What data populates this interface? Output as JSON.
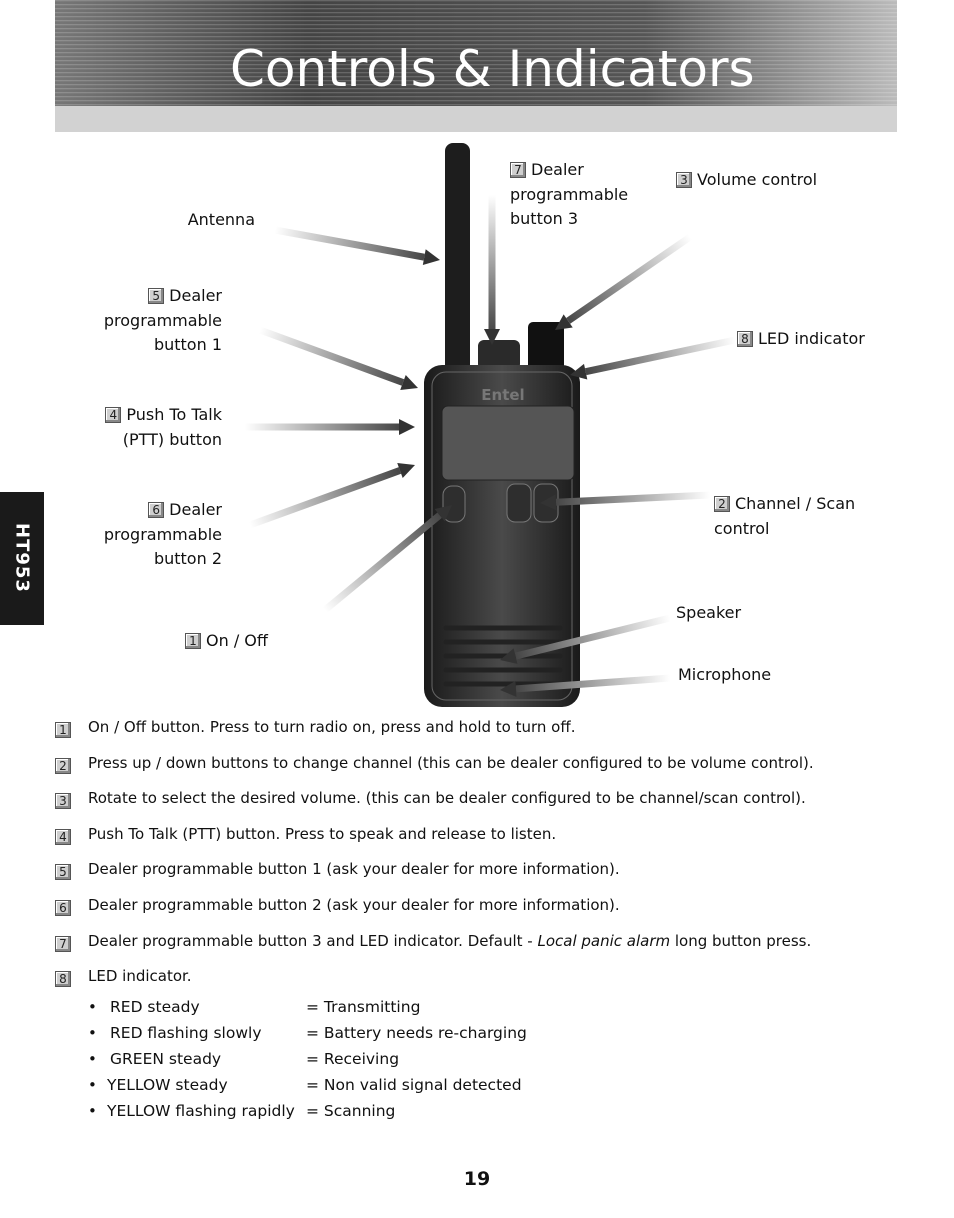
{
  "header": {
    "title": "Controls & Indicators"
  },
  "side_tab": "HT953",
  "callouts": [
    {
      "label": "Antenna"
    },
    {
      "number": "5",
      "label": "Dealer programmable button 1"
    },
    {
      "number": "4",
      "label": "Push To Talk (PTT) button"
    },
    {
      "number": "6",
      "label": "Dealer programmable button 2"
    },
    {
      "number": "1",
      "label": "On / Off"
    },
    {
      "number": "7",
      "label": "Dealer programmable button 3"
    },
    {
      "number": "3",
      "label": "Volume control"
    },
    {
      "number": "8",
      "label": "LED indicator"
    },
    {
      "number": "2",
      "label": "Channel / Scan control"
    },
    {
      "label": "Speaker"
    },
    {
      "label": "Microphone"
    }
  ],
  "items": [
    {
      "number": "1",
      "text": "On / Off button. Press to turn radio on, press and hold to turn off."
    },
    {
      "number": "2",
      "text": "Press up / down buttons to change channel (this can be dealer configured to be volume control)."
    },
    {
      "number": "3",
      "text": "Rotate to select the desired volume. (this can be dealer configured to be channel/scan control)."
    },
    {
      "number": "4",
      "text": "Push To Talk (PTT) button. Press to speak and release to listen."
    },
    {
      "number": "5",
      "text": "Dealer programmable button 1 (ask your dealer for more information)."
    },
    {
      "number": "6",
      "text": "Dealer programmable button 2 (ask your dealer for more information)."
    },
    {
      "number": "7",
      "text": "Dealer programmable button 3 and LED indicator. Default - ",
      "emphasis": "Local panic alarm",
      "text_after": " long button press."
    },
    {
      "number": "8",
      "text": "LED indicator."
    }
  ],
  "led_states": [
    {
      "state": "RED steady",
      "meaning": "= Transmitting"
    },
    {
      "state": "RED flashing slowly",
      "meaning": "= Battery needs re-charging"
    },
    {
      "state": "GREEN steady",
      "meaning": "= Receiving"
    },
    {
      "state": "YELLOW steady",
      "meaning": "= Non valid signal detected"
    },
    {
      "state": "YELLOW flashing rapidly",
      "meaning": "= Scanning"
    }
  ],
  "page_number": "19"
}
